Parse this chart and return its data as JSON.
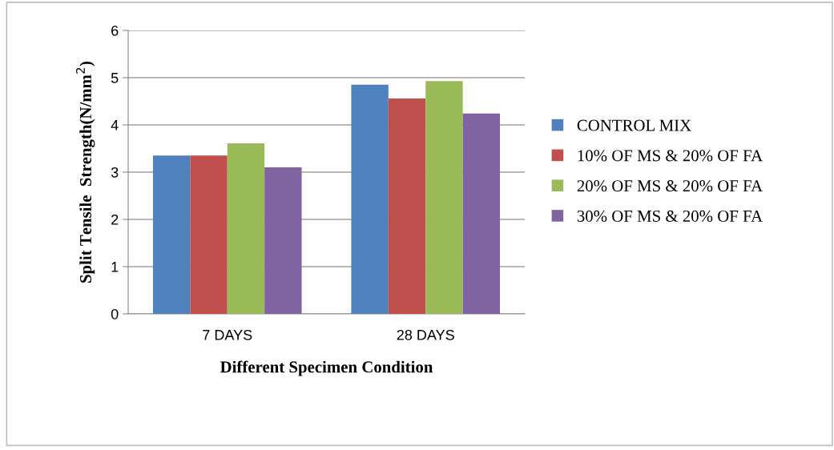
{
  "chart_data": {
    "type": "bar",
    "xlabel": "Different Specimen Condition",
    "ylabel": "Split Tensile  Strength(N/mm$^{2}$)",
    "categories": [
      "7 DAYS",
      "28 DAYS"
    ],
    "series": [
      {
        "name": "CONTROL MIX",
        "color": "#4f81bd",
        "values": [
          3.35,
          4.85
        ]
      },
      {
        "name": "10% OF MS & 20% OF FA",
        "color": "#c0504d",
        "values": [
          3.35,
          4.56
        ]
      },
      {
        "name": "20% OF MS & 20% OF FA",
        "color": "#9bbb59",
        "values": [
          3.61,
          4.93
        ]
      },
      {
        "name": "30% OF MS & 20% OF FA",
        "color": "#8064a2",
        "values": [
          3.1,
          4.24
        ]
      }
    ],
    "ylim": [
      0,
      6
    ],
    "yticks": [
      0,
      1,
      2,
      3,
      4,
      5,
      6
    ],
    "grid": "y",
    "legend": "right"
  }
}
